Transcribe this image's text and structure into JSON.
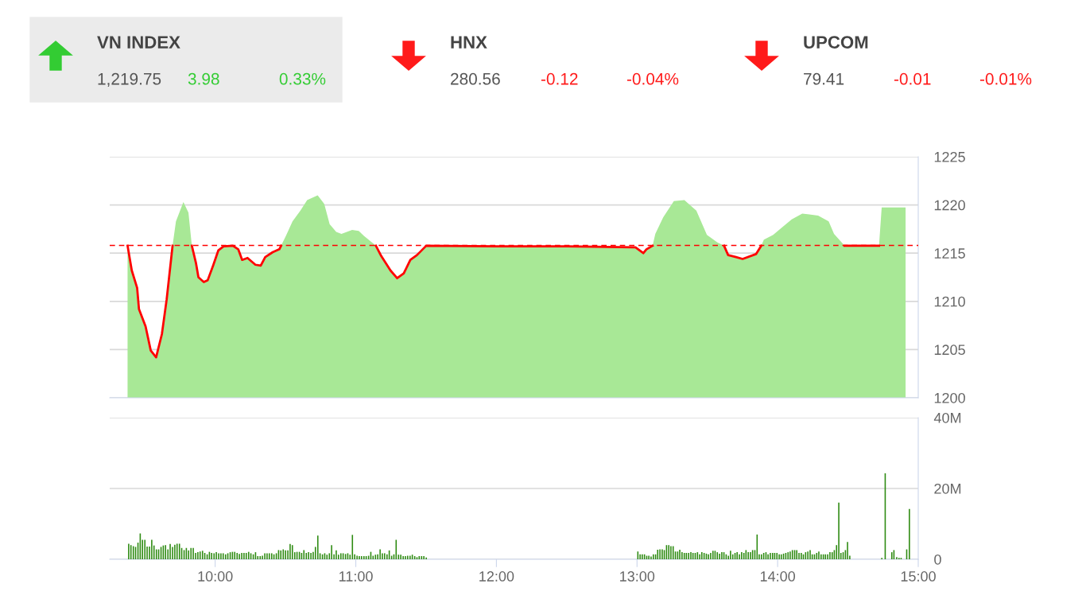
{
  "chart_data": [
    {
      "type": "other",
      "categories": [
        "VN INDEX",
        "HNX",
        "UPCOM"
      ],
      "values": [
        3.98,
        -0.12,
        -0.01
      ],
      "value_labels": [
        "3.98",
        "-0.12",
        "-0.01"
      ],
      "annotations": [
        "1,219.75",
        "0.33%",
        "280.56",
        "-0.04%",
        "79.41",
        "-0.01%"
      ]
    },
    {
      "type": "area",
      "xlim": [
        9.25,
        15
      ],
      "ylim": [
        1200,
        1225
      ],
      "yticks": [
        1200,
        1205,
        1210,
        1215,
        1220,
        1225
      ],
      "grid": "y",
      "tick_labels": "y",
      "ref_lines": [
        {
          "axis": "y",
          "value": 1215.8,
          "color": "#ff0000",
          "line_style": "dashed"
        }
      ],
      "series": [
        {
          "type": "area",
          "color": "#a8e896",
          "x": [
            9.377,
            9.407,
            9.445,
            9.458,
            9.505,
            9.542,
            9.58,
            9.621,
            9.655,
            9.697,
            9.721,
            9.774,
            9.81,
            9.834,
            9.863,
            9.881,
            9.919,
            9.947,
            9.985,
            10.023,
            10.06,
            10.126,
            10.164,
            10.192,
            10.23,
            10.286,
            10.324,
            10.356,
            10.409,
            10.456,
            10.469,
            10.503,
            10.55,
            10.606,
            10.654,
            10.729,
            10.776,
            10.814,
            10.861,
            10.898,
            10.974,
            11.021,
            11.058,
            11.143,
            11.181,
            11.247,
            11.294,
            11.341,
            11.388,
            11.435,
            11.501,
            12.0,
            12.5,
            12.989,
            13.045,
            13.067,
            13.111,
            13.13,
            13.186,
            13.262,
            13.337,
            13.422,
            13.497,
            13.572,
            13.619,
            13.648,
            13.704,
            13.751,
            13.846,
            13.884,
            13.902,
            13.968,
            14.025,
            14.1,
            14.175,
            14.288,
            14.363,
            14.401,
            14.476,
            14.721,
            14.74,
            14.91
          ],
          "values": [
            1215.77,
            1213.2,
            1211.4,
            1209.2,
            1207.4,
            1204.9,
            1204.2,
            1206.6,
            1210.2,
            1215.77,
            1218.3,
            1220.3,
            1219.2,
            1215.77,
            1214.0,
            1212.5,
            1212.0,
            1212.2,
            1213.7,
            1215.3,
            1215.7,
            1215.77,
            1215.4,
            1214.3,
            1214.5,
            1213.8,
            1213.7,
            1214.6,
            1215.1,
            1215.4,
            1215.77,
            1216.8,
            1218.3,
            1219.4,
            1220.5,
            1221.0,
            1220.1,
            1218.0,
            1217.2,
            1217.0,
            1217.4,
            1217.3,
            1216.8,
            1215.77,
            1214.7,
            1213.2,
            1212.4,
            1212.9,
            1214.3,
            1214.8,
            1215.77,
            1215.7,
            1215.7,
            1215.6,
            1215.0,
            1215.4,
            1215.77,
            1217.0,
            1218.7,
            1220.4,
            1220.5,
            1219.4,
            1216.9,
            1216.1,
            1215.77,
            1214.8,
            1214.6,
            1214.4,
            1214.9,
            1215.77,
            1216.4,
            1216.9,
            1217.6,
            1218.5,
            1219.1,
            1218.9,
            1218.3,
            1217.0,
            1215.77,
            1215.77,
            1219.75,
            1219.75
          ]
        },
        {
          "type": "line",
          "color": "#ff0000",
          "x": [
            9.377,
            9.407,
            9.445,
            9.458,
            9.505,
            9.542,
            9.58,
            9.621,
            9.655,
            9.697,
            9.721,
            9.774,
            9.81,
            9.834,
            9.863,
            9.881,
            9.919,
            9.947,
            9.985,
            10.023,
            10.06,
            10.126,
            10.164,
            10.192,
            10.23,
            10.286,
            10.324,
            10.356,
            10.409,
            10.456,
            10.469,
            10.503,
            10.55,
            10.606,
            10.654,
            10.729,
            10.776,
            10.814,
            10.861,
            10.898,
            10.974,
            11.021,
            11.058,
            11.143,
            11.181,
            11.247,
            11.294,
            11.341,
            11.388,
            11.435,
            11.501,
            12.0,
            12.5,
            12.989,
            13.045,
            13.067,
            13.111,
            13.13,
            13.186,
            13.262,
            13.337,
            13.422,
            13.497,
            13.572,
            13.619,
            13.648,
            13.704,
            13.751,
            13.846,
            13.884,
            13.902,
            13.968,
            14.025,
            14.1,
            14.175,
            14.288,
            14.363,
            14.401,
            14.476,
            14.721
          ],
          "values": [
            1215.77,
            1213.2,
            1211.4,
            1209.2,
            1207.4,
            1204.9,
            1204.2,
            1206.6,
            1210.2,
            1215.77,
            null,
            null,
            null,
            1215.77,
            1214.0,
            1212.5,
            1212.0,
            1212.2,
            1213.7,
            1215.3,
            1215.7,
            1215.77,
            1215.4,
            1214.3,
            1214.5,
            1213.8,
            1213.7,
            1214.6,
            1215.1,
            1215.4,
            1215.77,
            null,
            null,
            null,
            null,
            null,
            null,
            null,
            null,
            null,
            null,
            null,
            null,
            1215.77,
            1214.7,
            1213.2,
            1212.4,
            1212.9,
            1214.3,
            1214.8,
            1215.77,
            1215.7,
            1215.7,
            1215.6,
            1215.0,
            1215.4,
            1215.77,
            null,
            null,
            null,
            null,
            null,
            null,
            null,
            1215.77,
            1214.8,
            1214.6,
            1214.4,
            1214.9,
            1215.77,
            null,
            null,
            null,
            null,
            null,
            null,
            null,
            null,
            1215.77,
            1215.77
          ]
        }
      ]
    },
    {
      "type": "bar",
      "color": "#2e8b12",
      "xlim": [
        9.25,
        15
      ],
      "ylim": [
        0,
        40
      ],
      "grid": "y",
      "xticks": [
        {
          "value": 10,
          "label": "10:00"
        },
        {
          "value": 11,
          "label": "11:00"
        },
        {
          "value": 12,
          "label": "12:00"
        },
        {
          "value": 13,
          "label": "13:00"
        },
        {
          "value": 14,
          "label": "14:00"
        },
        {
          "value": 15,
          "label": "15:00"
        }
      ],
      "yticks": [
        0,
        {
          "value": 20,
          "label": "20M"
        },
        {
          "value": 40,
          "label": "40M"
        }
      ],
      "x": [
        9.385,
        9.401,
        9.418,
        9.434,
        9.451,
        9.467,
        9.483,
        9.5,
        9.516,
        9.533,
        9.549,
        9.565,
        9.582,
        9.598,
        9.615,
        9.631,
        9.647,
        9.664,
        9.68,
        9.697,
        9.713,
        9.729,
        9.746,
        9.762,
        9.779,
        9.795,
        9.811,
        9.828,
        9.844,
        9.861,
        9.877,
        9.893,
        9.91,
        9.926,
        9.943,
        9.959,
        9.975,
        9.992,
        10.008,
        10.025,
        10.041,
        10.057,
        10.074,
        10.09,
        10.107,
        10.123,
        10.139,
        10.156,
        10.172,
        10.189,
        10.205,
        10.221,
        10.238,
        10.254,
        10.271,
        10.287,
        10.303,
        10.32,
        10.336,
        10.353,
        10.369,
        10.385,
        10.402,
        10.418,
        10.435,
        10.451,
        10.467,
        10.484,
        10.5,
        10.517,
        10.533,
        10.549,
        10.566,
        10.582,
        10.599,
        10.615,
        10.631,
        10.648,
        10.664,
        10.681,
        10.697,
        10.713,
        10.73,
        10.746,
        10.763,
        10.779,
        10.795,
        10.812,
        10.828,
        10.845,
        10.861,
        10.877,
        10.894,
        10.91,
        10.927,
        10.943,
        10.959,
        10.976,
        10.992,
        11.009,
        11.025,
        11.041,
        11.058,
        11.074,
        11.091,
        11.107,
        11.123,
        11.14,
        11.156,
        11.173,
        11.189,
        11.205,
        11.222,
        11.238,
        11.255,
        11.271,
        11.287,
        11.304,
        11.32,
        11.337,
        11.353,
        11.369,
        11.386,
        11.402,
        11.419,
        11.435,
        11.451,
        11.468,
        11.484,
        11.501,
        13.006,
        13.022,
        13.037,
        13.053,
        13.069,
        13.084,
        13.1,
        13.116,
        13.132,
        13.147,
        13.163,
        13.179,
        13.194,
        13.21,
        13.226,
        13.241,
        13.257,
        13.273,
        13.289,
        13.304,
        13.32,
        13.336,
        13.351,
        13.367,
        13.383,
        13.398,
        13.414,
        13.43,
        13.446,
        13.461,
        13.477,
        13.493,
        13.508,
        13.524,
        13.54,
        13.555,
        13.571,
        13.587,
        13.603,
        13.618,
        13.634,
        13.65,
        13.665,
        13.681,
        13.697,
        13.712,
        13.728,
        13.744,
        13.76,
        13.775,
        13.791,
        13.807,
        13.822,
        13.838,
        13.854,
        13.869,
        13.885,
        13.901,
        13.917,
        13.932,
        13.948,
        13.964,
        13.979,
        13.995,
        14.011,
        14.026,
        14.042,
        14.058,
        14.074,
        14.089,
        14.105,
        14.121,
        14.136,
        14.152,
        14.168,
        14.183,
        14.199,
        14.215,
        14.231,
        14.246,
        14.262,
        14.278,
        14.293,
        14.309,
        14.325,
        14.34,
        14.356,
        14.372,
        14.388,
        14.403,
        14.419,
        14.435,
        14.45,
        14.466,
        14.482,
        14.497,
        14.513,
        14.741,
        14.765,
        14.812,
        14.827,
        14.847,
        14.863,
        14.878,
        14.918,
        14.937
      ],
      "values": [
        4.4,
        4.0,
        3.7,
        3.5,
        4.7,
        7.3,
        5.5,
        5.5,
        3.6,
        3.6,
        5.5,
        3.9,
        2.8,
        2.8,
        3.5,
        3.9,
        4.0,
        2.8,
        4.3,
        3.5,
        4.1,
        4.4,
        4.4,
        3.2,
        2.6,
        3.2,
        2.5,
        3.2,
        3.2,
        1.8,
        2.0,
        2.2,
        2.4,
        1.8,
        1.4,
        2.1,
        1.8,
        1.7,
        2.0,
        1.7,
        1.7,
        1.7,
        1.4,
        1.7,
        2.0,
        2.1,
        2.1,
        1.8,
        1.5,
        1.8,
        1.8,
        1.8,
        2.1,
        1.7,
        1.4,
        2.0,
        0.9,
        0.9,
        1.0,
        1.7,
        1.7,
        1.7,
        1.7,
        1.4,
        1.7,
        2.6,
        2.5,
        2.8,
        2.5,
        2.5,
        4.3,
        4.0,
        2.0,
        2.1,
        2.1,
        1.8,
        2.6,
        1.8,
        2.0,
        1.8,
        2.1,
        3.5,
        6.7,
        1.7,
        1.4,
        1.7,
        1.3,
        1.7,
        4.0,
        1.4,
        2.5,
        1.3,
        1.7,
        1.7,
        1.5,
        1.7,
        1.3,
        6.9,
        1.4,
        1.0,
        0.9,
        0.9,
        0.9,
        0.9,
        1.0,
        2.1,
        1.0,
        1.3,
        1.4,
        2.8,
        1.7,
        1.7,
        1.4,
        2.5,
        1.0,
        1.4,
        5.5,
        1.3,
        1.3,
        0.9,
        0.9,
        1.0,
        1.0,
        1.3,
        0.9,
        0.6,
        0.9,
        0.9,
        0.9,
        0.5,
        2.2,
        1.4,
        1.4,
        1.4,
        1.0,
        1.0,
        0.8,
        1.4,
        1.4,
        2.7,
        2.8,
        2.8,
        2.6,
        4.0,
        4.0,
        3.7,
        3.7,
        2.2,
        2.2,
        2.7,
        2.0,
        1.8,
        1.8,
        1.8,
        2.0,
        1.8,
        1.8,
        2.0,
        1.4,
        2.0,
        1.8,
        1.6,
        1.4,
        1.8,
        2.4,
        2.4,
        2.0,
        1.6,
        2.0,
        2.0,
        1.4,
        1.0,
        2.4,
        1.4,
        1.8,
        2.0,
        1.4,
        2.0,
        1.8,
        2.6,
        2.0,
        2.0,
        2.6,
        2.6,
        7.0,
        1.4,
        1.4,
        1.8,
        2.0,
        1.4,
        1.8,
        1.8,
        1.8,
        1.8,
        1.4,
        1.4,
        1.6,
        1.8,
        2.0,
        2.2,
        2.6,
        2.6,
        2.6,
        1.8,
        1.8,
        1.4,
        2.0,
        2.2,
        2.6,
        1.4,
        1.4,
        1.8,
        2.2,
        1.4,
        1.4,
        1.4,
        1.4,
        2.0,
        2.0,
        2.6,
        4.0,
        16.0,
        1.8,
        2.0,
        2.6,
        4.9,
        1.0,
        0.4,
        24.3,
        2.0,
        2.6,
        0.6,
        0.4,
        0.4,
        2.8,
        14.2
      ]
    }
  ]
}
